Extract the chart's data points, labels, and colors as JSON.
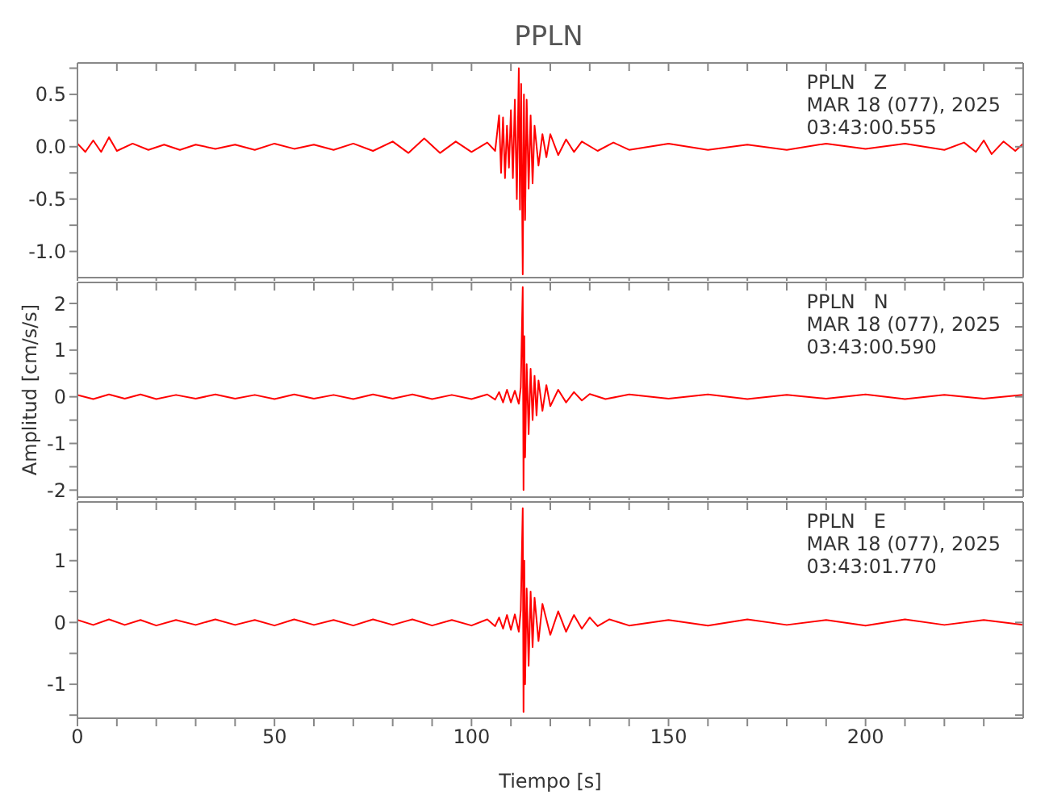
{
  "chart_data": [
    {
      "type": "line",
      "title": "PPLN",
      "annotations": [
        "PPLN   Z",
        "MAR 18 (077), 2025",
        "03:43:00.555"
      ],
      "tick_labels": "y",
      "xlim": [
        0,
        240
      ],
      "xticks": [
        0,
        {
          "value": 10,
          "label": null
        },
        {
          "value": 20,
          "label": null
        },
        {
          "value": 30,
          "label": null
        },
        {
          "value": 40,
          "label": null
        },
        50,
        {
          "value": 60,
          "label": null
        },
        {
          "value": 70,
          "label": null
        },
        {
          "value": 80,
          "label": null
        },
        {
          "value": 90,
          "label": null
        },
        100,
        {
          "value": 110,
          "label": null
        },
        {
          "value": 120,
          "label": null
        },
        {
          "value": 130,
          "label": null
        },
        {
          "value": 140,
          "label": null
        },
        150,
        {
          "value": 160,
          "label": null
        },
        {
          "value": 170,
          "label": null
        },
        {
          "value": 180,
          "label": null
        },
        {
          "value": 190,
          "label": null
        },
        200,
        {
          "value": 210,
          "label": null
        },
        {
          "value": 220,
          "label": null
        },
        {
          "value": 230,
          "label": null
        }
      ],
      "ylim": [
        -1.25,
        0.8
      ],
      "yticks": [
        {
          "value": 0.75,
          "label": null
        },
        0.5,
        {
          "value": 0.25,
          "label": null
        },
        {
          "value": 0,
          "label": "0.0"
        },
        {
          "value": -0.25,
          "label": null
        },
        -0.5,
        {
          "value": -0.75,
          "label": null
        },
        {
          "value": -1,
          "label": "-1.0"
        }
      ],
      "color": "#ff0000",
      "x": [
        0,
        2,
        4,
        6,
        8,
        10,
        14,
        18,
        22,
        26,
        30,
        35,
        40,
        45,
        50,
        55,
        60,
        65,
        70,
        75,
        80,
        84,
        88,
        92,
        96,
        100,
        104,
        106,
        107,
        107.5,
        108,
        108.5,
        109,
        109.5,
        110,
        110.5,
        111,
        111.5,
        112,
        112.3,
        112.6,
        113,
        113.3,
        113.6,
        114,
        114.5,
        115,
        115.5,
        116,
        117,
        118,
        119,
        120,
        122,
        124,
        126,
        128,
        132,
        136,
        140,
        150,
        160,
        170,
        180,
        190,
        200,
        210,
        220,
        225,
        228,
        230,
        232,
        235,
        238,
        240
      ],
      "values": [
        0.03,
        -0.05,
        0.06,
        -0.05,
        0.09,
        -0.04,
        0.03,
        -0.03,
        0.02,
        -0.03,
        0.02,
        -0.02,
        0.02,
        -0.03,
        0.03,
        -0.02,
        0.02,
        -0.03,
        0.03,
        -0.04,
        0.05,
        -0.06,
        0.08,
        -0.06,
        0.05,
        -0.05,
        0.04,
        -0.04,
        0.3,
        -0.25,
        0.28,
        -0.3,
        0.2,
        -0.2,
        0.35,
        -0.3,
        0.45,
        -0.5,
        0.75,
        -0.6,
        0.6,
        -1.22,
        0.5,
        -0.7,
        0.45,
        -0.4,
        0.3,
        -0.35,
        0.2,
        -0.18,
        0.12,
        -0.1,
        0.12,
        -0.08,
        0.07,
        -0.05,
        0.05,
        -0.04,
        0.04,
        -0.03,
        0.03,
        -0.03,
        0.02,
        -0.03,
        0.03,
        -0.02,
        0.03,
        -0.03,
        0.04,
        -0.05,
        0.06,
        -0.07,
        0.05,
        -0.04,
        0.03
      ]
    },
    {
      "type": "line",
      "ylabel": "Amplitud [cm/s/s]",
      "annotations": [
        "PPLN   N",
        "MAR 18 (077), 2025",
        "03:43:00.590"
      ],
      "tick_labels": "y",
      "xlim": [
        0,
        240
      ],
      "xticks": [
        0,
        {
          "value": 10,
          "label": null
        },
        {
          "value": 20,
          "label": null
        },
        {
          "value": 30,
          "label": null
        },
        {
          "value": 40,
          "label": null
        },
        50,
        {
          "value": 60,
          "label": null
        },
        {
          "value": 70,
          "label": null
        },
        {
          "value": 80,
          "label": null
        },
        {
          "value": 90,
          "label": null
        },
        100,
        {
          "value": 110,
          "label": null
        },
        {
          "value": 120,
          "label": null
        },
        {
          "value": 130,
          "label": null
        },
        {
          "value": 140,
          "label": null
        },
        150,
        {
          "value": 160,
          "label": null
        },
        {
          "value": 170,
          "label": null
        },
        {
          "value": 180,
          "label": null
        },
        {
          "value": 190,
          "label": null
        },
        200,
        {
          "value": 210,
          "label": null
        },
        {
          "value": 220,
          "label": null
        },
        {
          "value": 230,
          "label": null
        }
      ],
      "ylim": [
        -2.15,
        2.45
      ],
      "yticks": [
        2,
        {
          "value": 1.5,
          "label": null
        },
        1,
        {
          "value": 0.5,
          "label": null
        },
        0,
        {
          "value": -0.5,
          "label": null
        },
        -1,
        {
          "value": -1.5,
          "label": null
        },
        -2
      ],
      "color": "#ff0000",
      "x": [
        0,
        4,
        8,
        12,
        16,
        20,
        25,
        30,
        35,
        40,
        45,
        50,
        55,
        60,
        65,
        70,
        75,
        80,
        85,
        90,
        95,
        100,
        104,
        106,
        107,
        108,
        109,
        110,
        111,
        112,
        112.5,
        113,
        113.2,
        113.4,
        113.6,
        114,
        114.5,
        115,
        115.5,
        116,
        116.5,
        117,
        118,
        119,
        120,
        122,
        124,
        126,
        128,
        130,
        134,
        140,
        150,
        160,
        170,
        180,
        190,
        200,
        210,
        220,
        230,
        240
      ],
      "values": [
        0.04,
        -0.05,
        0.05,
        -0.04,
        0.05,
        -0.05,
        0.04,
        -0.04,
        0.05,
        -0.04,
        0.04,
        -0.05,
        0.05,
        -0.04,
        0.04,
        -0.05,
        0.05,
        -0.04,
        0.05,
        -0.05,
        0.04,
        -0.05,
        0.05,
        -0.06,
        0.1,
        -0.12,
        0.15,
        -0.12,
        0.13,
        -0.15,
        0.2,
        2.35,
        -2.0,
        1.3,
        -1.3,
        0.7,
        -0.8,
        0.6,
        -0.5,
        0.45,
        -0.4,
        0.35,
        -0.3,
        0.25,
        -0.2,
        0.15,
        -0.12,
        0.1,
        -0.08,
        0.06,
        -0.05,
        0.05,
        -0.04,
        0.05,
        -0.05,
        0.04,
        -0.04,
        0.05,
        -0.05,
        0.04,
        -0.04,
        0.04
      ]
    },
    {
      "type": "line",
      "xlabel": "Tiempo [s]",
      "annotations": [
        "PPLN   E",
        "MAR 18 (077), 2025",
        "03:43:01.770"
      ],
      "xlim": [
        0,
        240
      ],
      "xticks": [
        0,
        {
          "value": 10,
          "label": null
        },
        {
          "value": 20,
          "label": null
        },
        {
          "value": 30,
          "label": null
        },
        {
          "value": 40,
          "label": null
        },
        50,
        {
          "value": 60,
          "label": null
        },
        {
          "value": 70,
          "label": null
        },
        {
          "value": 80,
          "label": null
        },
        {
          "value": 90,
          "label": null
        },
        100,
        {
          "value": 110,
          "label": null
        },
        {
          "value": 120,
          "label": null
        },
        {
          "value": 130,
          "label": null
        },
        {
          "value": 140,
          "label": null
        },
        150,
        {
          "value": 160,
          "label": null
        },
        {
          "value": 170,
          "label": null
        },
        {
          "value": 180,
          "label": null
        },
        {
          "value": 190,
          "label": null
        },
        200,
        {
          "value": 210,
          "label": null
        },
        {
          "value": 220,
          "label": null
        },
        {
          "value": 230,
          "label": null
        }
      ],
      "ylim": [
        -1.55,
        1.95
      ],
      "yticks": [
        {
          "value": 1.5,
          "label": null
        },
        1,
        {
          "value": 0.5,
          "label": null
        },
        0,
        {
          "value": -0.5,
          "label": null
        },
        -1,
        {
          "value": -1.5,
          "label": null
        }
      ],
      "color": "#ff0000",
      "x": [
        0,
        4,
        8,
        12,
        16,
        20,
        25,
        30,
        35,
        40,
        45,
        50,
        55,
        60,
        65,
        70,
        75,
        80,
        85,
        90,
        95,
        100,
        104,
        106,
        107,
        108,
        109,
        110,
        111,
        112,
        112.5,
        113,
        113.2,
        113.4,
        113.6,
        114,
        114.5,
        115,
        115.5,
        116,
        117,
        118,
        120,
        122,
        124,
        126,
        128,
        130,
        132,
        135,
        140,
        150,
        160,
        170,
        180,
        190,
        200,
        210,
        220,
        230,
        240
      ],
      "values": [
        0.04,
        -0.04,
        0.05,
        -0.04,
        0.04,
        -0.05,
        0.04,
        -0.04,
        0.05,
        -0.04,
        0.04,
        -0.05,
        0.05,
        -0.04,
        0.04,
        -0.05,
        0.05,
        -0.04,
        0.05,
        -0.05,
        0.04,
        -0.05,
        0.05,
        -0.06,
        0.08,
        -0.1,
        0.12,
        -0.12,
        0.13,
        -0.15,
        0.2,
        1.85,
        -1.45,
        1.0,
        -1.0,
        0.55,
        -0.7,
        0.5,
        -0.4,
        0.4,
        -0.3,
        0.3,
        -0.2,
        0.18,
        -0.15,
        0.12,
        -0.1,
        0.08,
        -0.06,
        0.05,
        -0.05,
        0.04,
        -0.05,
        0.05,
        -0.04,
        0.04,
        -0.05,
        0.05,
        -0.04,
        0.04,
        -0.04
      ]
    }
  ]
}
